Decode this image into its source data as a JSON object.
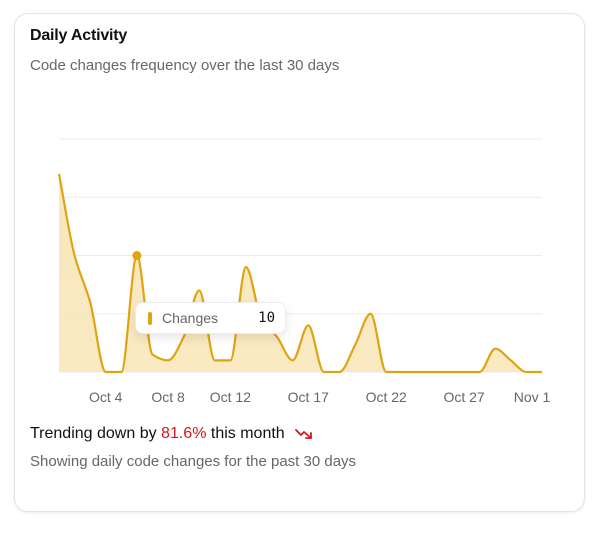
{
  "card": {
    "title": "Daily Activity",
    "subtitle": "Code changes frequency over the last 30 days"
  },
  "tooltip": {
    "label": "Changes",
    "value": "10",
    "date_index": 5
  },
  "footer": {
    "trend_prefix": "Trending down by ",
    "trend_value": "81.6%",
    "trend_suffix": " this month",
    "trend_icon": "trending-down-icon",
    "description": "Showing daily code changes for the past 30 days"
  },
  "colors": {
    "line": "#e0a412",
    "fill": "#f8e6b8",
    "trend_down": "#d8141c",
    "grid": "#ececec"
  },
  "chart_data": {
    "type": "area",
    "title": "Daily Activity",
    "subtitle": "Code changes frequency over the last 30 days",
    "xlabel": "",
    "ylabel": "",
    "series": [
      {
        "name": "Changes",
        "values": [
          17,
          10,
          6,
          0,
          0,
          10,
          1.5,
          1,
          3,
          7,
          1,
          1,
          9,
          4.5,
          3,
          1,
          4,
          0,
          0,
          2.3,
          5,
          0,
          0,
          0,
          0,
          0,
          0,
          0,
          2,
          1,
          0,
          0
        ]
      }
    ],
    "x": [
      "Oct 1",
      "Oct 2",
      "Oct 3",
      "Oct 4",
      "Oct 5",
      "Oct 6",
      "Oct 7",
      "Oct 8",
      "Oct 9",
      "Oct 10",
      "Oct 11",
      "Oct 12",
      "Oct 13",
      "Oct 14",
      "Oct 15",
      "Oct 16",
      "Oct 17",
      "Oct 18",
      "Oct 19",
      "Oct 20",
      "Oct 21",
      "Oct 22",
      "Oct 23",
      "Oct 24",
      "Oct 25",
      "Oct 26",
      "Oct 27",
      "Oct 28",
      "Oct 29",
      "Oct 30",
      "Oct 31",
      "Nov 1"
    ],
    "tick_labels": [
      "Oct 4",
      "Oct 8",
      "Oct 12",
      "Oct 17",
      "Oct 22",
      "Oct 27",
      "Nov 1"
    ],
    "tick_indices": [
      3,
      7,
      11,
      16,
      21,
      26,
      31
    ],
    "ylim": [
      0,
      20
    ],
    "grid": true,
    "y_axis_visible": false,
    "legend": "none",
    "highlighted_point": {
      "x": "Oct 6",
      "value": 10
    }
  }
}
